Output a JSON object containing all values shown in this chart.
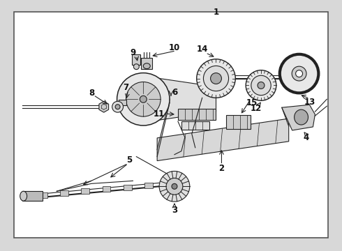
{
  "background_color": "#d8d8d8",
  "border_color": "#555555",
  "line_color": "#222222",
  "text_color": "#111111",
  "fig_width": 4.9,
  "fig_height": 3.6,
  "dpi": 100,
  "inner_bg": "#ffffff",
  "label_fontsize": 8.5
}
